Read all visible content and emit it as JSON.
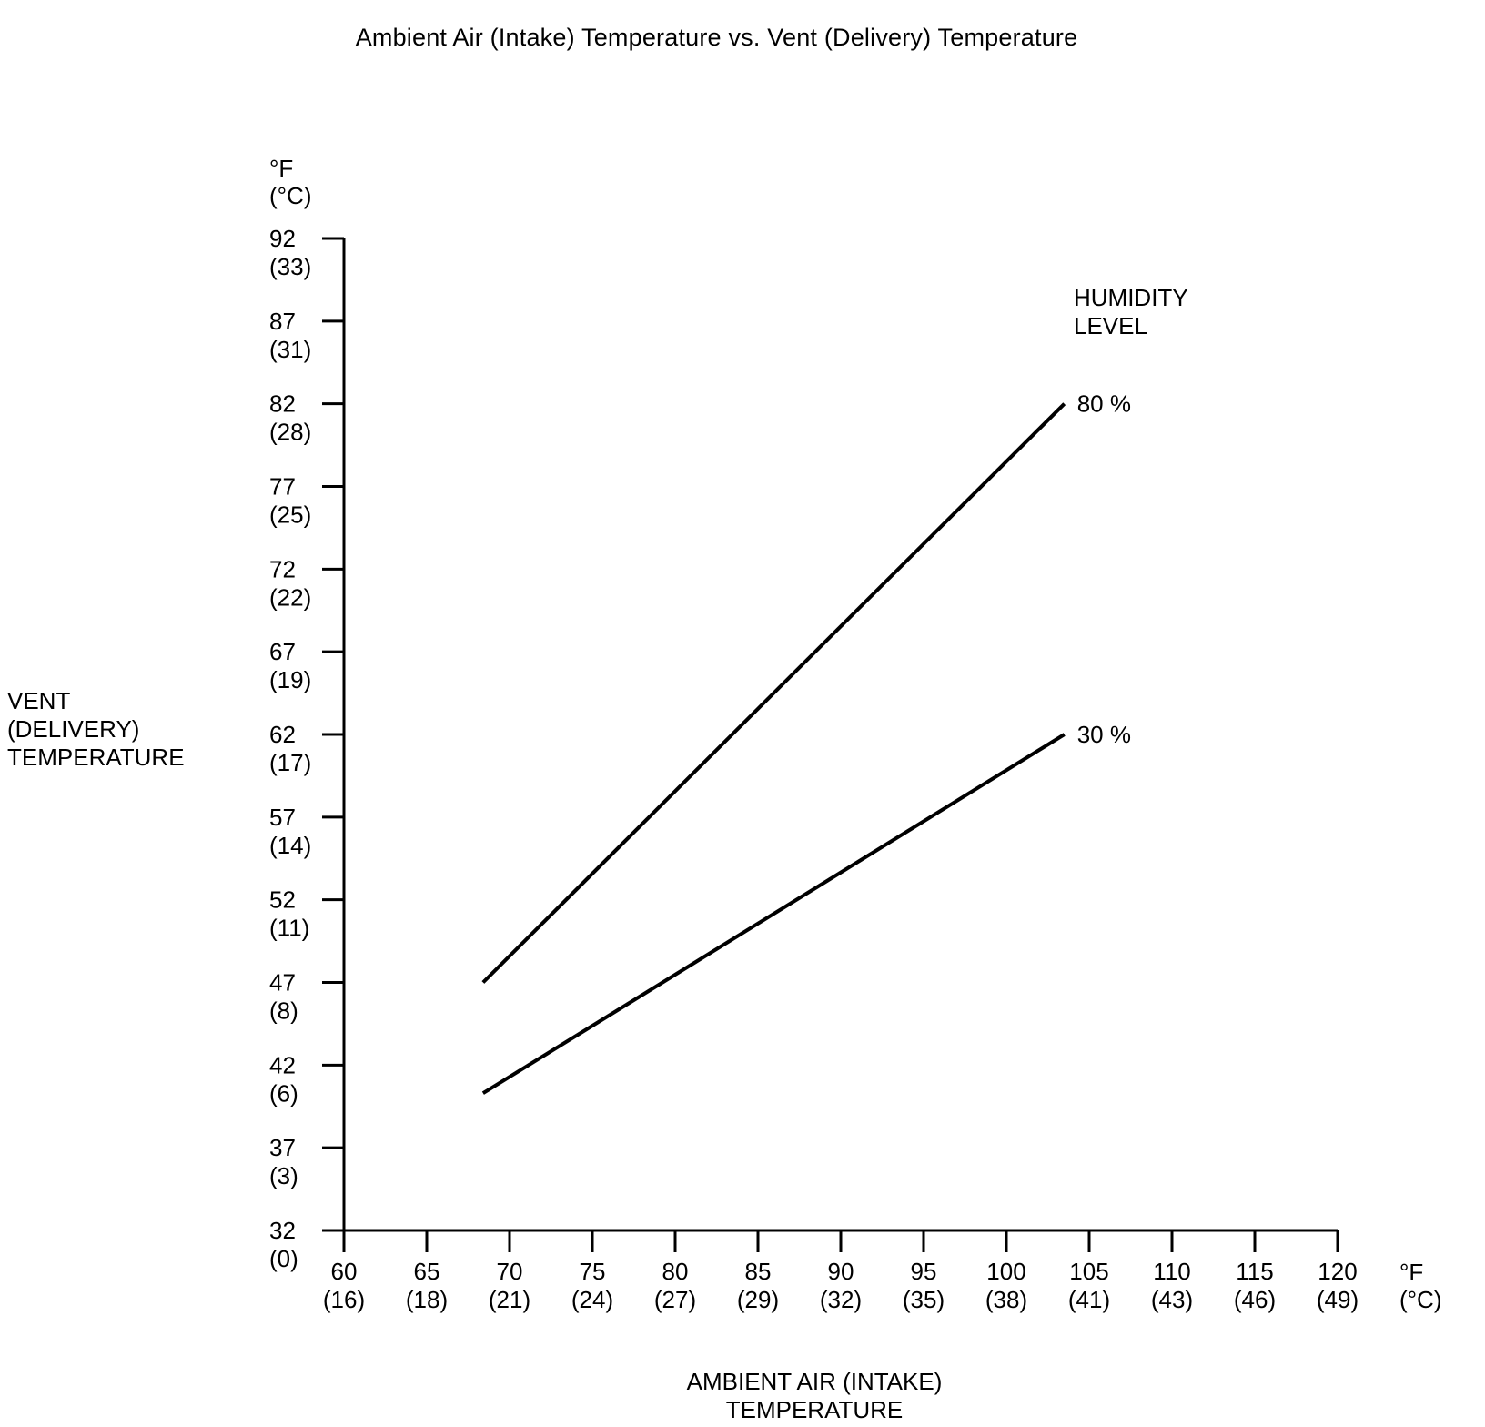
{
  "title": "Ambient Air (Intake) Temperature vs. Vent (Delivery) Temperature",
  "y_axis": {
    "unit_lines": [
      "°F",
      "(°C)"
    ],
    "title_lines": [
      "VENT",
      "(DELIVERY)",
      "TEMPERATURE"
    ],
    "ticks": [
      {
        "f": "92",
        "c": "(33)"
      },
      {
        "f": "87",
        "c": "(31)"
      },
      {
        "f": "82",
        "c": "(28)"
      },
      {
        "f": "77",
        "c": "(25)"
      },
      {
        "f": "72",
        "c": "(22)"
      },
      {
        "f": "67",
        "c": "(19)"
      },
      {
        "f": "62",
        "c": "(17)"
      },
      {
        "f": "57",
        "c": "(14)"
      },
      {
        "f": "52",
        "c": "(11)"
      },
      {
        "f": "47",
        "c": "(8)"
      },
      {
        "f": "42",
        "c": "(6)"
      },
      {
        "f": "37",
        "c": "(3)"
      },
      {
        "f": "32",
        "c": "(0)"
      }
    ]
  },
  "x_axis": {
    "unit_lines": [
      "°F",
      "(°C)"
    ],
    "title": "AMBIENT AIR (INTAKE) TEMPERATURE",
    "ticks": [
      {
        "f": "60",
        "c": "(16)"
      },
      {
        "f": "65",
        "c": "(18)"
      },
      {
        "f": "70",
        "c": "(21)"
      },
      {
        "f": "75",
        "c": "(24)"
      },
      {
        "f": "80",
        "c": "(27)"
      },
      {
        "f": "85",
        "c": "(29)"
      },
      {
        "f": "90",
        "c": "(32)"
      },
      {
        "f": "95",
        "c": "(35)"
      },
      {
        "f": "100",
        "c": "(38)"
      },
      {
        "f": "105",
        "c": "(41)"
      },
      {
        "f": "110",
        "c": "(43)"
      },
      {
        "f": "115",
        "c": "(46)"
      },
      {
        "f": "120",
        "c": "(49)"
      }
    ]
  },
  "legend": {
    "title_lines": [
      "HUMIDITY",
      "LEVEL"
    ]
  },
  "chart_data": {
    "type": "line",
    "title": "Ambient Air (Intake) Temperature vs. Vent (Delivery) Temperature",
    "xlabel": "AMBIENT AIR (INTAKE) TEMPERATURE",
    "ylabel": "VENT (DELIVERY) TEMPERATURE",
    "x_unit": "°F (°C)",
    "y_unit": "°F (°C)",
    "xlim": [
      60,
      120
    ],
    "ylim": [
      32,
      92
    ],
    "x_ticks_f": [
      60,
      65,
      70,
      75,
      80,
      85,
      90,
      95,
      100,
      105,
      110,
      115,
      120
    ],
    "x_ticks_c": [
      16,
      18,
      21,
      24,
      27,
      29,
      32,
      35,
      38,
      41,
      43,
      46,
      49
    ],
    "y_ticks_f": [
      92,
      87,
      82,
      77,
      72,
      67,
      62,
      57,
      52,
      47,
      42,
      37,
      32
    ],
    "y_ticks_c": [
      33,
      31,
      28,
      25,
      22,
      19,
      17,
      14,
      11,
      8,
      6,
      3,
      0
    ],
    "legend_title": "HUMIDITY LEVEL",
    "grid": false,
    "line_color": "#000000",
    "series": [
      {
        "name": "80 %",
        "points": [
          [
            68.4,
            47
          ],
          [
            103.5,
            82
          ]
        ]
      },
      {
        "name": "30 %",
        "points": [
          [
            68.4,
            40.3
          ],
          [
            103.5,
            62
          ]
        ]
      }
    ]
  }
}
